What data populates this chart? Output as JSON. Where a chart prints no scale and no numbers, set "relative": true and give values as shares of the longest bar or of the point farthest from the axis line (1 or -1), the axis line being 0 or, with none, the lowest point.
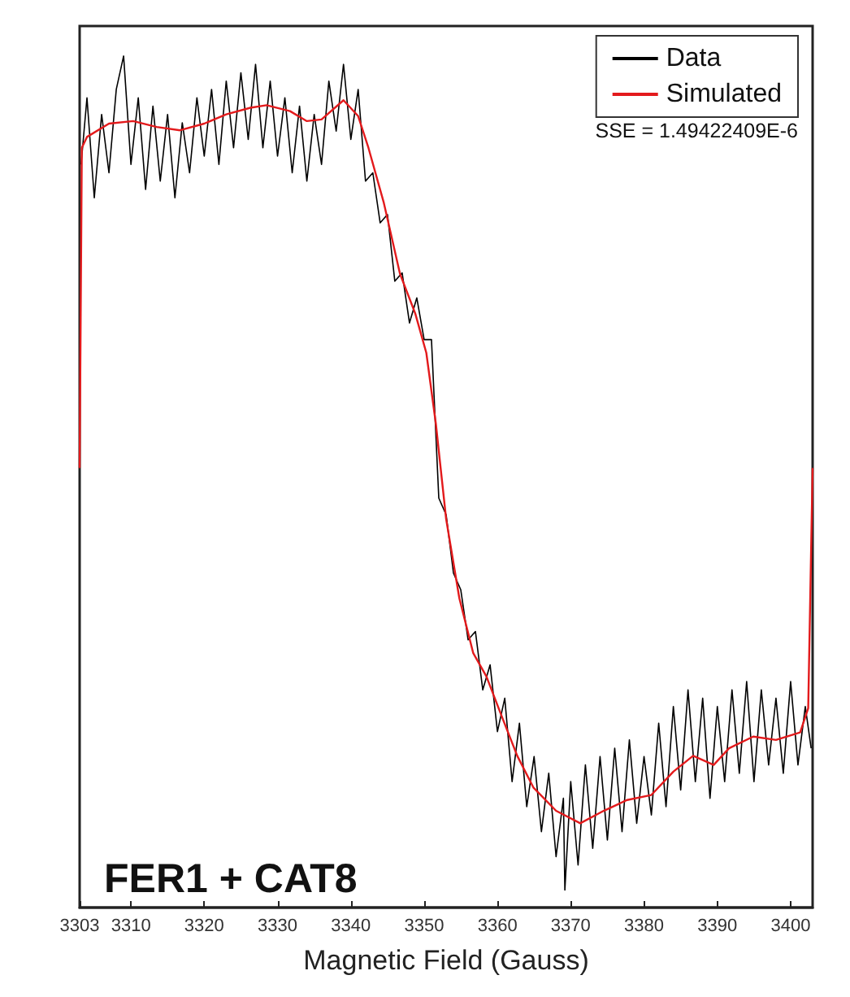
{
  "chart_data": {
    "type": "line",
    "relative": true,
    "xlabel": "Magnetic Field (Gauss)",
    "xlim": [
      3303,
      3403
    ],
    "xticks": [
      3303,
      3310,
      3320,
      3330,
      3340,
      3350,
      3360,
      3370,
      3380,
      3390,
      3400
    ],
    "grid": false,
    "legend": "top right",
    "marker": "none",
    "line_style": "solid",
    "annotations": [
      "SSE = 1.49422409E-6",
      "FER1 + CAT8"
    ],
    "series": [
      {
        "name": "Data",
        "color": "#000000",
        "x": [
          3303.2,
          3304,
          3305,
          3306,
          3307,
          3308,
          3309,
          3310,
          3311,
          3312,
          3313,
          3314,
          3315,
          3316,
          3317,
          3318,
          3319,
          3320,
          3321,
          3322,
          3323,
          3324,
          3325,
          3326,
          3327,
          3328,
          3329,
          3330,
          3331,
          3332,
          3333,
          3334,
          3335,
          3336,
          3337,
          3338,
          3339,
          3340,
          3341,
          3342,
          3343,
          3344,
          3345,
          3346,
          3347,
          3348,
          3349,
          3350,
          3351,
          3352,
          3353,
          3354,
          3355,
          3356,
          3357,
          3358,
          3359,
          3360,
          3361,
          3362,
          3363,
          3364,
          3365,
          3366,
          3367,
          3368,
          3369,
          3369.2,
          3370,
          3371,
          3372,
          3373,
          3374,
          3375,
          3376,
          3377,
          3378,
          3379,
          3380,
          3381,
          3382,
          3383,
          3384,
          3385,
          3386,
          3387,
          3388,
          3389,
          3390,
          3391,
          3392,
          3393,
          3394,
          3395,
          3396,
          3397,
          3398,
          3399,
          3400,
          3401,
          3402,
          3402.8
        ],
        "values": [
          0.87,
          0.95,
          0.83,
          0.93,
          0.86,
          0.96,
          1.0,
          0.87,
          0.95,
          0.84,
          0.94,
          0.85,
          0.93,
          0.83,
          0.92,
          0.86,
          0.95,
          0.88,
          0.96,
          0.87,
          0.97,
          0.89,
          0.98,
          0.9,
          0.99,
          0.89,
          0.97,
          0.88,
          0.95,
          0.86,
          0.94,
          0.85,
          0.93,
          0.87,
          0.97,
          0.91,
          0.99,
          0.9,
          0.96,
          0.85,
          0.86,
          0.8,
          0.81,
          0.73,
          0.74,
          0.68,
          0.71,
          0.66,
          0.66,
          0.47,
          0.45,
          0.38,
          0.36,
          0.3,
          0.31,
          0.24,
          0.27,
          0.19,
          0.23,
          0.13,
          0.2,
          0.1,
          0.16,
          0.07,
          0.14,
          0.04,
          0.11,
          0.0,
          0.13,
          0.03,
          0.15,
          0.05,
          0.16,
          0.06,
          0.17,
          0.07,
          0.18,
          0.08,
          0.16,
          0.09,
          0.2,
          0.1,
          0.22,
          0.12,
          0.24,
          0.13,
          0.23,
          0.11,
          0.22,
          0.13,
          0.24,
          0.14,
          0.25,
          0.13,
          0.24,
          0.15,
          0.23,
          0.14,
          0.25,
          0.15,
          0.22,
          0.17
        ]
      },
      {
        "name": "Simulated",
        "color": "#e31a1c",
        "x": [
          3303,
          3303.3,
          3304,
          3307,
          3310.3,
          3313.5,
          3316.7,
          3320,
          3323,
          3326.3,
          3328.5,
          3331.7,
          3334,
          3336,
          3339,
          3341,
          3342.4,
          3344.5,
          3346.7,
          3348.8,
          3350.3,
          3351.6,
          3353,
          3354.8,
          3356.7,
          3358.5,
          3360.6,
          3362.7,
          3364.9,
          3368,
          3371.3,
          3374.5,
          3377.7,
          3381,
          3384,
          3386.7,
          3389.5,
          3391.6,
          3394.9,
          3398,
          3401.3,
          3402.4,
          3403
        ],
        "values": [
          0.506,
          0.89,
          0.903,
          0.919,
          0.922,
          0.915,
          0.911,
          0.919,
          0.93,
          0.938,
          0.941,
          0.934,
          0.922,
          0.924,
          0.947,
          0.928,
          0.89,
          0.824,
          0.739,
          0.691,
          0.644,
          0.559,
          0.445,
          0.35,
          0.284,
          0.256,
          0.208,
          0.161,
          0.123,
          0.095,
          0.08,
          0.095,
          0.108,
          0.114,
          0.142,
          0.161,
          0.15,
          0.17,
          0.184,
          0.18,
          0.189,
          0.218,
          0.506
        ]
      }
    ]
  }
}
